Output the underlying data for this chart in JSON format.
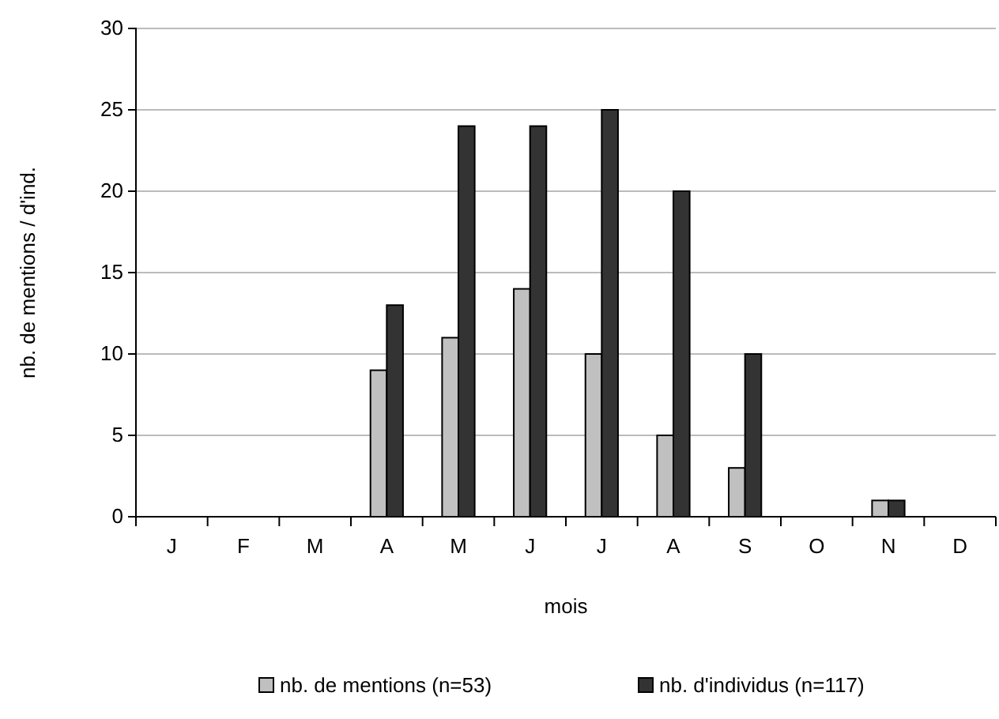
{
  "chart_data": {
    "type": "bar",
    "xlabel": "mois",
    "ylabel": "nb. de mentions / d'ind.",
    "categories": [
      "J",
      "F",
      "M",
      "A",
      "M",
      "J",
      "J",
      "A",
      "S",
      "O",
      "N",
      "D"
    ],
    "series": [
      {
        "name": "nb. de mentions (n=53)",
        "color": "#c0c0c0",
        "values": [
          0,
          0,
          0,
          9,
          11,
          14,
          10,
          5,
          3,
          0,
          1,
          0
        ]
      },
      {
        "name": "nb. d'individus (n=117)",
        "color": "#333333",
        "values": [
          0,
          0,
          0,
          13,
          24,
          24,
          25,
          20,
          10,
          0,
          1,
          0
        ]
      }
    ],
    "ylim": [
      0,
      30
    ],
    "yticks": [
      0,
      5,
      10,
      15,
      20,
      25,
      30
    ],
    "grid": "y",
    "legend": "bottom"
  }
}
